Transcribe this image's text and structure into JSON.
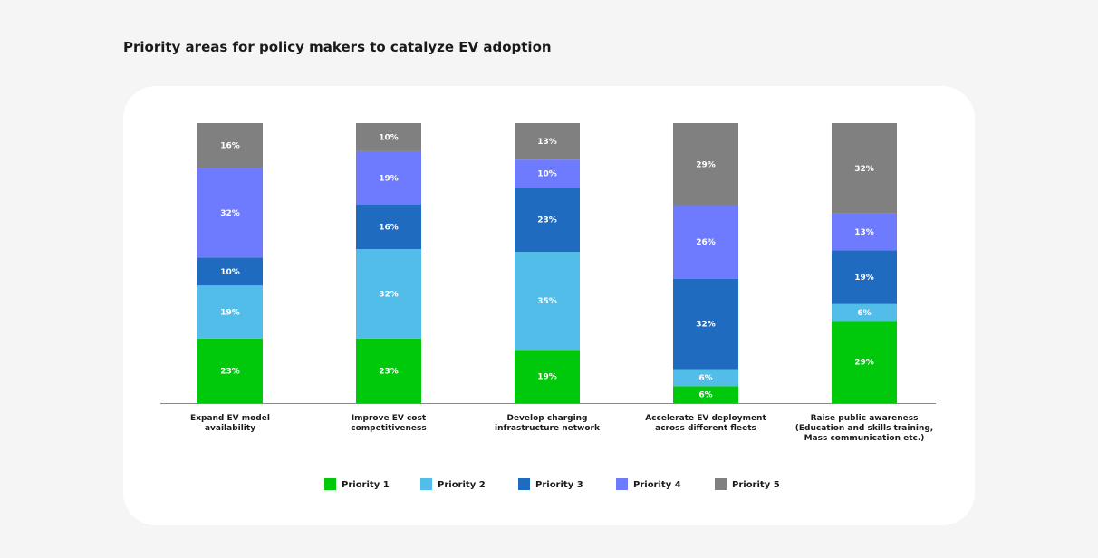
{
  "chart_data": {
    "type": "bar",
    "stacked": true,
    "title": "Priority areas for policy makers to catalyze EV adoption",
    "categories": [
      [
        "Expand EV model",
        "availability"
      ],
      [
        "Improve EV cost",
        "competitiveness"
      ],
      [
        "Develop charging",
        "infrastructure network"
      ],
      [
        "Accelerate EV deployment",
        "across different fleets"
      ],
      [
        "Raise public awareness",
        "(Education and skills training,",
        "Mass communication etc.)"
      ]
    ],
    "series": [
      {
        "name": "Priority 1",
        "color": "#00c80a",
        "values": [
          23,
          23,
          19,
          6,
          29
        ]
      },
      {
        "name": "Priority 2",
        "color": "#52bde9",
        "values": [
          19,
          32,
          35,
          6,
          6
        ]
      },
      {
        "name": "Priority 3",
        "color": "#1f6bbf",
        "values": [
          10,
          16,
          23,
          32,
          19
        ]
      },
      {
        "name": "Priority 4",
        "color": "#6e7bff",
        "values": [
          32,
          19,
          10,
          26,
          13
        ]
      },
      {
        "name": "Priority 5",
        "color": "#808080",
        "values": [
          16,
          10,
          13,
          29,
          32
        ]
      }
    ],
    "value_suffix": "%",
    "legend_position": "bottom",
    "grid": false
  }
}
